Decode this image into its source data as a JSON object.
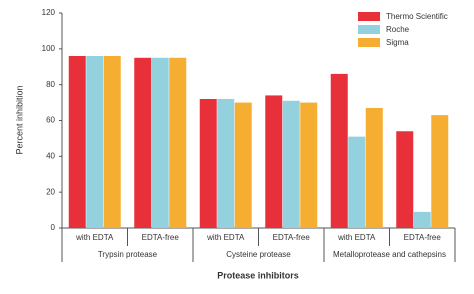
{
  "chart_data": {
    "type": "bar",
    "y_label": "Percent inhibition",
    "x_label": "Protease inhibitors",
    "categories": [
      "with EDTA",
      "EDTA-free",
      "with EDTA",
      "EDTA-free",
      "with EDTA",
      "EDTA-free"
    ],
    "group_labels": [
      "Trypsin protease",
      "Cysteine protease",
      "Metalloprotease and cathepsins"
    ],
    "series": [
      {
        "name": "Thermo Scientific",
        "color": "#e8303a",
        "values": [
          96,
          95,
          72,
          74,
          86,
          54
        ]
      },
      {
        "name": "Roche",
        "color": "#94d1de",
        "values": [
          96,
          95,
          72,
          71,
          51,
          9
        ]
      },
      {
        "name": "Sigma",
        "color": "#f5ad32",
        "values": [
          96,
          95,
          70,
          70,
          67,
          63
        ]
      }
    ],
    "ylim": [
      0,
      120
    ],
    "yticks": [
      0,
      20,
      40,
      60,
      80,
      100,
      120
    ],
    "grid": false,
    "legend": "top-right"
  }
}
